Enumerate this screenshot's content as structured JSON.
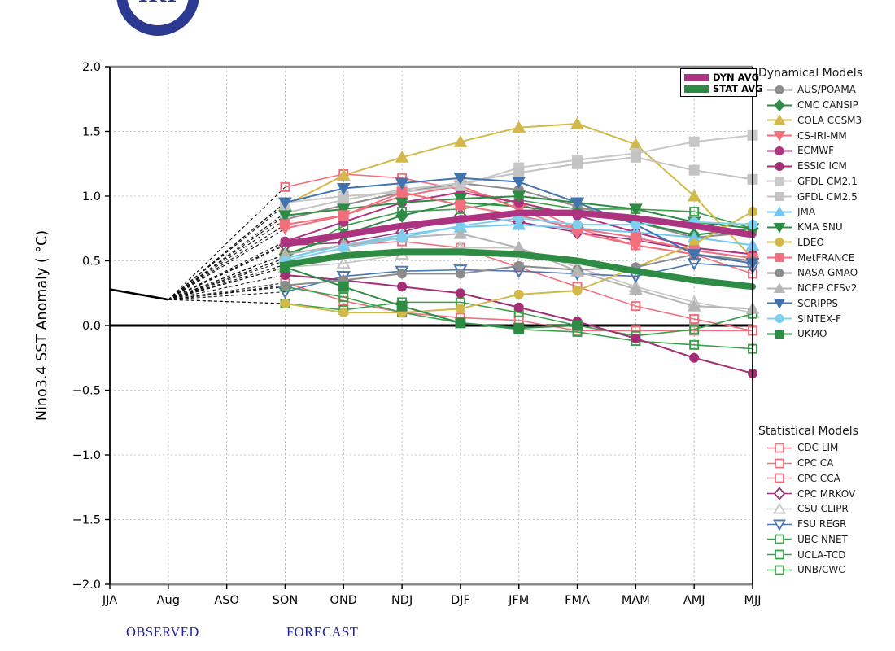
{
  "logo": {
    "text": "IRI",
    "color": "#2b3990"
  },
  "annotations": {
    "observed_label": "OBSERVED",
    "forecast_label": "FORECAST",
    "label_color": "#22229a"
  },
  "legend_titles": {
    "dynamical": "Dynamical Models",
    "statistical": "Statistical Models"
  },
  "chart_data": {
    "type": "line",
    "title": "",
    "xlabel": "",
    "ylabel": "Nino3.4 SST Anomaly ( °C)",
    "ylim": [
      -2.0,
      2.0
    ],
    "grid": true,
    "legend_position": "right",
    "categories": [
      "JJA",
      "Aug",
      "ASO",
      "SON",
      "OND",
      "NDJ",
      "DJF",
      "JFM",
      "FMA",
      "MAM",
      "AMJ",
      "MJJ"
    ],
    "ytick_labels": [
      "2.0",
      "1.5",
      "1.0",
      "0.5",
      "0.0",
      "−0.5",
      "−1.0",
      "−1.5",
      "−2.0"
    ],
    "ytick_values": [
      2.0,
      1.5,
      1.0,
      0.5,
      0.0,
      -0.5,
      -1.0,
      -1.5,
      -2.0
    ],
    "observed": {
      "categories": [
        "JJA",
        "Aug"
      ],
      "values": [
        0.28,
        0.2
      ],
      "color": "#000000"
    },
    "forecast_start_category": "SON",
    "averages": [
      {
        "name": "DYN AVG",
        "color": "#ac3380",
        "values": [
          0.63,
          0.7,
          0.77,
          0.82,
          0.87,
          0.87,
          0.83,
          0.77,
          0.7
        ]
      },
      {
        "name": "STAT AVG",
        "color": "#2e8b44",
        "values": [
          0.47,
          0.54,
          0.57,
          0.57,
          0.55,
          0.5,
          0.42,
          0.35,
          0.3
        ]
      }
    ],
    "dynamical_models": [
      {
        "name": "AUS/POAMA",
        "color": "#8c8c8c",
        "marker": "circle",
        "fill": "filled",
        "values": [
          0.82,
          0.93,
          1.03,
          1.1,
          1.05,
          0.92,
          0.8,
          0.68,
          0.72
        ]
      },
      {
        "name": "CMC CANSIP",
        "color": "#2e8b44",
        "marker": "diamond",
        "fill": "filled",
        "values": [
          0.55,
          0.7,
          0.85,
          0.95,
          0.92,
          0.87,
          0.8,
          0.7,
          0.75
        ]
      },
      {
        "name": "COLA CCSM3",
        "color": "#d3b94b",
        "marker": "triangle-up",
        "fill": "filled",
        "values": [
          0.93,
          1.16,
          1.3,
          1.42,
          1.53,
          1.56,
          1.4,
          1.0,
          0.52
        ]
      },
      {
        "name": "CS-IRI-MM",
        "color": "#f2707e",
        "marker": "triangle-down",
        "fill": "filled",
        "values": [
          0.75,
          0.85,
          1.0,
          1.08,
          0.9,
          0.72,
          0.62,
          0.55,
          0.5
        ]
      },
      {
        "name": "ECMWF",
        "color": "#b0337f",
        "marker": "circle",
        "fill": "filled",
        "values": [
          0.65,
          0.8,
          0.95,
          1.03,
          0.95,
          0.85,
          0.72,
          0.6,
          0.55
        ]
      },
      {
        "name": "ESSIC ICM",
        "color": "#a22e74",
        "marker": "circle",
        "fill": "filled",
        "values": [
          0.39,
          0.35,
          0.3,
          0.25,
          0.14,
          0.03,
          -0.1,
          -0.25,
          -0.37
        ]
      },
      {
        "name": "GFDL CM2.1",
        "color": "#c8c8c8",
        "marker": "square",
        "fill": "filled",
        "values": [
          0.95,
          1.0,
          1.03,
          1.08,
          1.22,
          1.28,
          1.33,
          1.42,
          1.47
        ]
      },
      {
        "name": "GFDL CM2.5",
        "color": "#c3c3c3",
        "marker": "square",
        "fill": "filled",
        "values": [
          0.87,
          0.97,
          1.05,
          1.1,
          1.18,
          1.25,
          1.3,
          1.2,
          1.13
        ]
      },
      {
        "name": "JMA",
        "color": "#72c8ee",
        "marker": "triangle-up",
        "fill": "filled",
        "values": [
          0.52,
          0.62,
          0.7,
          0.76,
          0.78,
          0.75,
          0.72,
          0.68,
          0.62
        ]
      },
      {
        "name": "KMA SNU",
        "color": "#2e8b44",
        "marker": "triangle-down",
        "fill": "filled",
        "values": [
          0.85,
          0.9,
          0.95,
          0.98,
          1.0,
          0.95,
          0.9,
          0.8,
          0.75
        ]
      },
      {
        "name": "LDEO",
        "color": "#d3b94b",
        "marker": "circle",
        "fill": "filled",
        "values": [
          0.17,
          0.1,
          0.1,
          0.13,
          0.24,
          0.27,
          0.45,
          0.63,
          0.88
        ]
      },
      {
        "name": "MetFRANCE",
        "color": "#f2707e",
        "marker": "square",
        "fill": "filled",
        "values": [
          0.78,
          0.85,
          1.03,
          0.93,
          0.85,
          0.75,
          0.68,
          0.58,
          0.52
        ]
      },
      {
        "name": "NASA GMAO",
        "color": "#8c8c8c",
        "marker": "circle",
        "fill": "filled",
        "values": [
          0.31,
          0.35,
          0.4,
          0.4,
          0.46,
          0.43,
          0.45,
          0.55,
          0.5
        ]
      },
      {
        "name": "NCEP CFSv2",
        "color": "#b5b5b5",
        "marker": "triangle-up",
        "fill": "filled",
        "values": [
          0.55,
          0.62,
          0.68,
          0.71,
          0.6,
          0.42,
          0.28,
          0.15,
          0.13
        ]
      },
      {
        "name": "SCRIPPS",
        "color": "#4173ae",
        "marker": "triangle-down",
        "fill": "filled",
        "values": [
          0.95,
          1.06,
          1.1,
          1.14,
          1.11,
          0.95,
          0.78,
          0.55,
          0.48
        ]
      },
      {
        "name": "SINTEX-F",
        "color": "#7fd0f0",
        "marker": "circle",
        "fill": "filled",
        "values": [
          0.5,
          0.6,
          0.68,
          0.77,
          0.83,
          0.78,
          0.78,
          0.8,
          0.78
        ]
      },
      {
        "name": "UKMO",
        "color": "#2e8b44",
        "marker": "square",
        "fill": "filled",
        "values": [
          0.45,
          0.3,
          0.15,
          0.02,
          -0.02,
          0.0
        ]
      }
    ],
    "statistical_models": [
      {
        "name": "CDC LIM",
        "color": "#f2707e",
        "marker": "square",
        "fill": "open",
        "values": [
          1.07,
          1.17,
          1.14,
          1.05,
          0.95,
          0.75,
          0.62,
          0.55,
          0.4
        ]
      },
      {
        "name": "CPC CA",
        "color": "#f2707e",
        "marker": "square",
        "fill": "open",
        "values": [
          0.55,
          0.62,
          0.65,
          0.6,
          0.45,
          0.3,
          0.15,
          0.05,
          -0.04
        ]
      },
      {
        "name": "CPC CCA",
        "color": "#f2707e",
        "marker": "square",
        "fill": "open",
        "values": [
          0.33,
          0.19,
          0.1,
          0.06,
          0.04,
          -0.04,
          -0.04,
          -0.04,
          -0.04
        ]
      },
      {
        "name": "CPC MRKOV",
        "color": "#9e3178",
        "marker": "diamond",
        "fill": "open",
        "values": [
          0.62,
          0.64,
          0.72,
          0.85,
          0.8,
          0.72,
          0.66,
          0.58,
          0.52
        ]
      },
      {
        "name": "CSU CLIPR",
        "color": "#c4c4c4",
        "marker": "triangle-up",
        "fill": "open",
        "values": [
          0.45,
          0.48,
          0.55,
          0.6,
          0.6,
          0.45,
          0.3,
          0.18,
          0.1
        ]
      },
      {
        "name": "FSU REGR",
        "color": "#4a76b4",
        "marker": "triangle-down",
        "fill": "open",
        "values": [
          0.26,
          0.38,
          0.42,
          0.43,
          0.42,
          0.4,
          0.38,
          0.48,
          0.45
        ]
      },
      {
        "name": "UBC NNET",
        "color": "#3aa04a",
        "marker": "square",
        "fill": "open",
        "values": [
          0.52,
          0.77,
          0.88,
          0.9,
          0.97,
          0.9,
          0.9,
          0.88,
          0.75
        ]
      },
      {
        "name": "UCLA-TCD",
        "color": "#3aa04a",
        "marker": "square",
        "fill": "open",
        "values": [
          0.17,
          0.12,
          0.18,
          0.18,
          0.1,
          0.0,
          -0.08,
          -0.03,
          0.09
        ]
      },
      {
        "name": "UNB/CWC",
        "color": "#3aa04a",
        "marker": "square",
        "fill": "open",
        "values": [
          0.3,
          0.22,
          0.1,
          0.02,
          -0.03,
          -0.05,
          -0.12,
          -0.15,
          -0.18
        ]
      }
    ]
  }
}
